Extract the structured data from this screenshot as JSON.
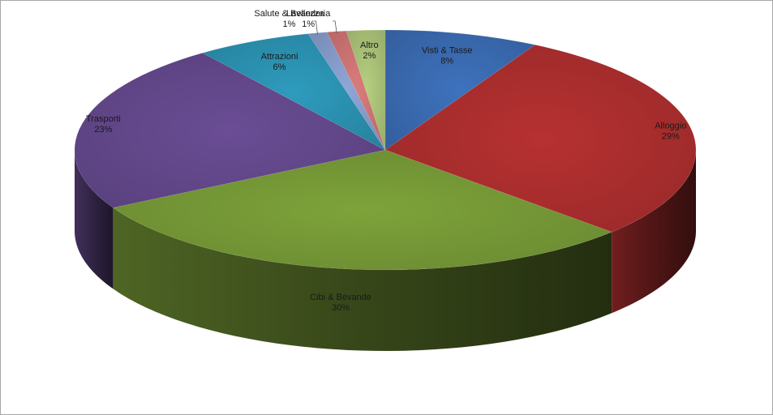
{
  "chart_data": {
    "type": "pie",
    "three_d": true,
    "title": "",
    "legend": "none",
    "slices": [
      {
        "label": "Visti & Tasse",
        "value": 8,
        "pct_label": "8%",
        "color": "#3e72bd"
      },
      {
        "label": "Alloggio",
        "value": 29,
        "pct_label": "29%",
        "color": "#b73131"
      },
      {
        "label": "Cibi & Bevande",
        "value": 30,
        "pct_label": "30%",
        "color": "#7ea33a"
      },
      {
        "label": "Trasporti",
        "value": 23,
        "pct_label": "23%",
        "color": "#6a4d95"
      },
      {
        "label": "Attrazioni",
        "value": 6,
        "pct_label": "6%",
        "color": "#2e9bbd"
      },
      {
        "label": "Salute & Bellezza",
        "value": 1,
        "pct_label": "1%",
        "color": "#8fa6d8"
      },
      {
        "label": "Lavanderia",
        "value": 1,
        "pct_label": "1%",
        "color": "#db7b7b"
      },
      {
        "label": "Altro",
        "value": 2,
        "pct_label": "2%",
        "color": "#b6cf80"
      }
    ]
  }
}
